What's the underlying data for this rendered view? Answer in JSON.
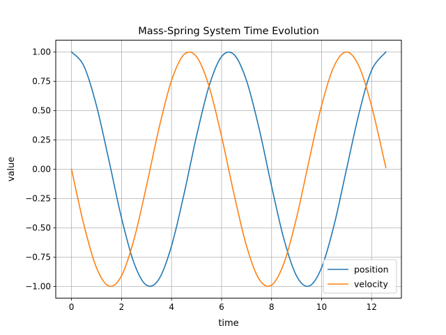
{
  "chart_data": {
    "type": "line",
    "title": "Mass-Spring System Time Evolution",
    "xlabel": "time",
    "ylabel": "value",
    "xlim": [
      -0.63,
      13.19
    ],
    "ylim": [
      -1.1,
      1.1
    ],
    "grid": true,
    "legend_position": "lower right",
    "x_ticks": [
      0,
      2,
      4,
      6,
      8,
      10,
      12
    ],
    "x_tick_labels": [
      "0",
      "2",
      "4",
      "6",
      "8",
      "10",
      "12"
    ],
    "y_ticks": [
      -1.0,
      -0.75,
      -0.5,
      -0.25,
      0.0,
      0.25,
      0.5,
      0.75,
      1.0
    ],
    "y_tick_labels": [
      "−1.00",
      "−0.75",
      "−0.50",
      "−0.25",
      "0.00",
      "0.25",
      "0.50",
      "0.75",
      "1.00"
    ],
    "x": [
      0,
      0.5,
      1,
      1.5,
      2,
      2.5,
      3,
      3.5,
      4,
      4.5,
      5,
      5.5,
      6,
      6.5,
      7,
      7.5,
      8,
      8.5,
      9,
      9.5,
      10,
      10.5,
      11,
      11.5,
      12,
      12.57
    ],
    "series": [
      {
        "name": "position",
        "color": "#1f77b4",
        "values": [
          1.0,
          0.878,
          0.54,
          0.071,
          -0.416,
          -0.801,
          -0.99,
          -0.936,
          -0.654,
          -0.211,
          0.284,
          0.709,
          0.96,
          0.977,
          0.754,
          0.347,
          -0.146,
          -0.602,
          -0.911,
          -0.997,
          -0.839,
          -0.476,
          0.004,
          0.48,
          0.844,
          1.0
        ]
      },
      {
        "name": "velocity",
        "color": "#ff7f0e",
        "values": [
          0.0,
          -0.479,
          -0.841,
          -0.997,
          -0.909,
          -0.598,
          -0.141,
          0.351,
          0.757,
          0.978,
          0.959,
          0.706,
          0.279,
          -0.215,
          -0.657,
          -0.938,
          -0.989,
          -0.798,
          -0.412,
          0.075,
          0.544,
          0.88,
          1.0,
          0.875,
          0.537,
          0.012
        ]
      }
    ]
  }
}
